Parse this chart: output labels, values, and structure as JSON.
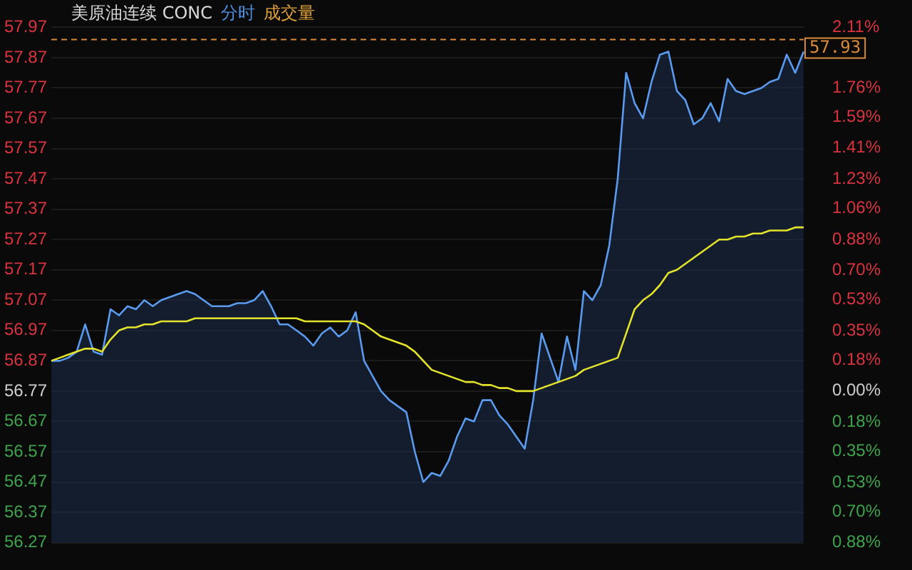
{
  "chart_data": {
    "type": "area",
    "title": "美原油连续 CONC",
    "annotations": [
      "分时",
      "成交量"
    ],
    "categories": [
      null,
      null,
      null,
      null,
      null,
      null,
      null,
      null,
      null,
      null,
      null,
      null,
      null,
      null,
      null,
      null,
      null,
      null,
      null,
      null,
      null,
      null,
      null,
      null,
      null,
      null,
      null,
      null,
      null,
      null,
      null,
      null,
      null,
      null,
      null,
      null,
      null,
      null,
      null,
      null,
      null,
      null,
      null,
      null,
      null,
      null,
      null,
      null,
      null,
      null,
      null,
      null,
      null,
      null,
      null,
      null,
      null,
      null,
      null,
      null,
      null,
      null,
      null,
      null,
      null,
      null,
      null,
      null,
      null,
      null,
      null,
      null,
      null,
      null,
      null,
      null,
      null,
      null,
      null,
      null,
      null,
      null,
      null,
      null,
      null,
      null,
      null,
      null,
      null,
      null
    ],
    "series": [
      {
        "type": "area",
        "color": "#5b9bef",
        "values": [
          56.87,
          56.87,
          56.88,
          56.9,
          56.99,
          56.9,
          56.89,
          57.04,
          57.02,
          57.05,
          57.04,
          57.07,
          57.05,
          57.07,
          57.08,
          57.09,
          57.1,
          57.09,
          57.07,
          57.05,
          57.05,
          57.05,
          57.06,
          57.06,
          57.07,
          57.1,
          57.05,
          56.99,
          56.99,
          56.97,
          56.95,
          56.92,
          56.96,
          56.98,
          56.95,
          56.97,
          57.03,
          56.87,
          56.82,
          56.77,
          56.74,
          56.72,
          56.7,
          56.57,
          56.47,
          56.5,
          56.49,
          56.54,
          56.62,
          56.68,
          56.67,
          56.74,
          56.74,
          56.69,
          56.66,
          56.62,
          56.58,
          56.74,
          56.96,
          56.88,
          56.8,
          56.95,
          56.84,
          57.1,
          57.07,
          57.12,
          57.25,
          57.47,
          57.82,
          57.72,
          57.67,
          57.79,
          57.88,
          57.89,
          57.76,
          57.73,
          57.65,
          57.67,
          57.72,
          57.66,
          57.8,
          57.76,
          57.75,
          57.76,
          57.77,
          57.79,
          57.8,
          57.88,
          57.82,
          57.89
        ]
      },
      {
        "type": "line",
        "color": "#e3e32c",
        "values": [
          56.87,
          56.88,
          56.89,
          56.9,
          56.91,
          56.91,
          56.9,
          56.94,
          56.97,
          56.98,
          56.98,
          56.99,
          56.99,
          57.0,
          57.0,
          57.0,
          57.0,
          57.01,
          57.01,
          57.01,
          57.01,
          57.01,
          57.01,
          57.01,
          57.01,
          57.01,
          57.01,
          57.01,
          57.01,
          57.01,
          57.0,
          57.0,
          57.0,
          57.0,
          57.0,
          57.0,
          57.0,
          56.99,
          56.97,
          56.95,
          56.94,
          56.93,
          56.92,
          56.9,
          56.87,
          56.84,
          56.83,
          56.82,
          56.81,
          56.8,
          56.8,
          56.79,
          56.79,
          56.78,
          56.78,
          56.77,
          56.77,
          56.77,
          56.78,
          56.79,
          56.8,
          56.81,
          56.82,
          56.84,
          56.85,
          56.86,
          56.87,
          56.88,
          56.96,
          57.04,
          57.07,
          57.09,
          57.12,
          57.16,
          57.17,
          57.19,
          57.21,
          57.23,
          57.25,
          57.27,
          57.27,
          57.28,
          57.28,
          57.29,
          57.29,
          57.3,
          57.3,
          57.3,
          57.31,
          57.31
        ]
      }
    ],
    "ylim": [
      56.27,
      57.97
    ],
    "yticks": [
      57.97,
      57.87,
      57.77,
      57.67,
      57.57,
      57.47,
      57.37,
      57.27,
      57.17,
      57.07,
      56.97,
      56.87,
      56.77,
      56.67,
      56.57,
      56.47,
      56.37,
      56.27
    ],
    "y2lim": [
      -0.88,
      2.11
    ],
    "y2ticks": [
      {
        "value": 2.11,
        "label": "2.11%"
      },
      {
        "value": 1.76,
        "label": "1.76%"
      },
      {
        "value": 1.59,
        "label": "1.59%"
      },
      {
        "value": 1.41,
        "label": "1.41%"
      },
      {
        "value": 1.23,
        "label": "1.23%"
      },
      {
        "value": 1.06,
        "label": "1.06%"
      },
      {
        "value": 0.88,
        "label": "0.88%"
      },
      {
        "value": 0.7,
        "label": "0.70%"
      },
      {
        "value": 0.53,
        "label": "0.53%"
      },
      {
        "value": 0.35,
        "label": "0.35%"
      },
      {
        "value": 0.18,
        "label": "0.18%"
      },
      {
        "value": 0,
        "label": "0.00%"
      },
      {
        "value": -0.18,
        "label": "0.18%"
      },
      {
        "value": -0.35,
        "label": "0.35%"
      },
      {
        "value": -0.53,
        "label": "0.53%"
      },
      {
        "value": -0.7,
        "label": "0.70%"
      },
      {
        "value": -0.88,
        "label": "0.88%"
      }
    ],
    "ref_lines": [
      {
        "axis": "y",
        "value": 57.93,
        "label": "57.93",
        "color": "#d98a3a",
        "line_style": "dashed"
      }
    ],
    "grid": "y",
    "legend": false,
    "marker": "none",
    "line_style": "solid"
  }
}
